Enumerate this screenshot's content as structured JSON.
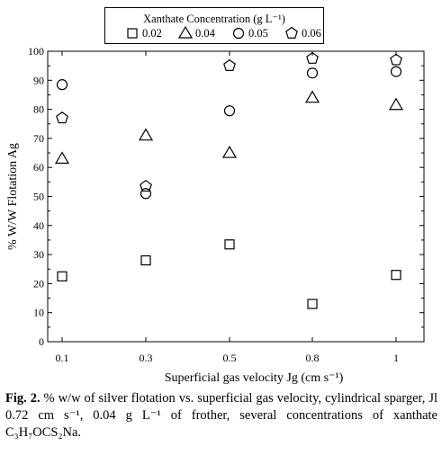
{
  "chart_data": {
    "type": "scatter",
    "title": "",
    "legend_title": "Xanthate Concentration (g L⁻¹)",
    "legend_position": "top",
    "xlabel": "Superficial gas velocity  Jg (cm s⁻¹)",
    "ylabel": "% W/W Flotation Ag",
    "x_ticks": [
      "0.1",
      "0.3",
      "0.5",
      "0.8",
      "1"
    ],
    "y_ticks": [
      "0",
      "10",
      "20",
      "30",
      "40",
      "50",
      "60",
      "70",
      "80",
      "90",
      "100"
    ],
    "ylim": [
      0,
      100
    ],
    "grid": false,
    "x": [
      0.1,
      0.3,
      0.5,
      0.8,
      1
    ],
    "series": [
      {
        "name": "0.02",
        "marker": "square",
        "values": [
          22.5,
          28,
          33.5,
          13,
          23
        ]
      },
      {
        "name": "0.04",
        "marker": "triangle",
        "values": [
          63,
          71,
          65,
          84,
          81.5
        ]
      },
      {
        "name": "0.05",
        "marker": "circle",
        "values": [
          88.5,
          51,
          79.5,
          92.5,
          93
        ]
      },
      {
        "name": "0.06",
        "marker": "pentagon",
        "values": [
          77,
          53.5,
          95,
          97.5,
          97
        ]
      }
    ]
  },
  "caption": {
    "label": "Fig. 2.",
    "text": " % w/w of silver flotation vs. superficial gas velocity, cylindrical sparger, Jl 0.72 cm s⁻¹, 0.04 g L⁻¹ of frother, several concentrations of xanthate C₃H₇OCS₂Na."
  }
}
